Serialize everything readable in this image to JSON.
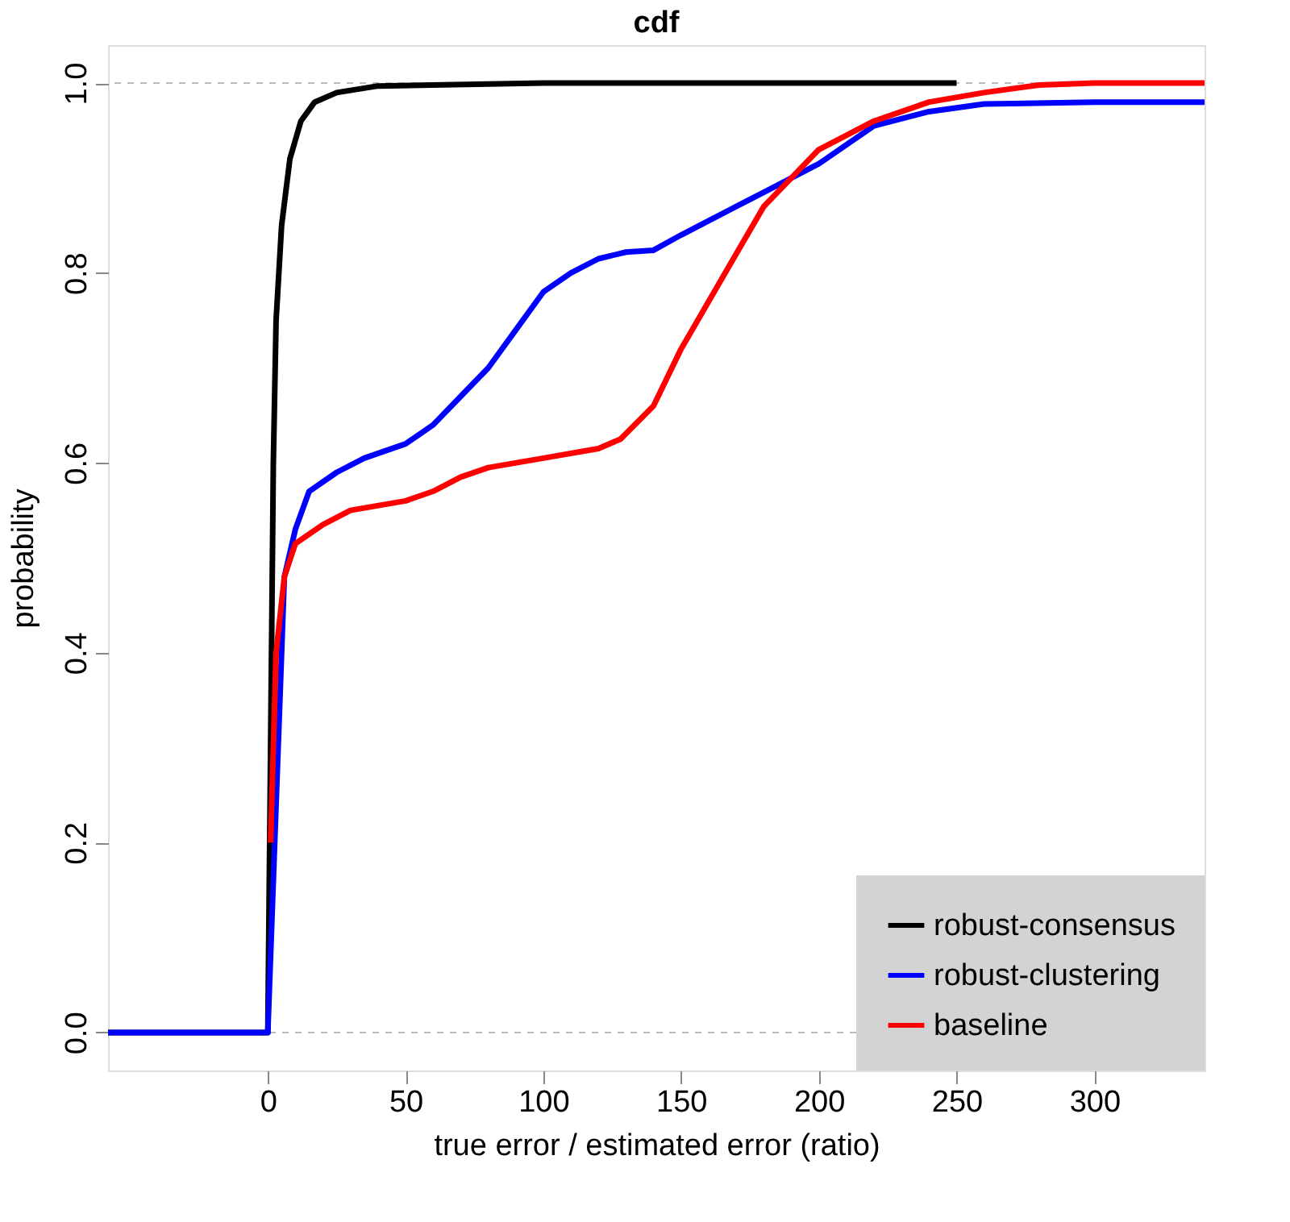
{
  "chart_data": {
    "type": "line",
    "title": "cdf",
    "xlabel": "true error / estimated error (ratio)",
    "ylabel": "probability",
    "xlim": [
      -58,
      340
    ],
    "xticks": [
      0,
      50,
      100,
      150,
      200,
      250,
      300
    ],
    "ylim": [
      -0.04,
      1.04
    ],
    "yticks": [
      {
        "value": 0,
        "label": "0.0"
      },
      {
        "value": 0.2,
        "label": "0.2"
      },
      {
        "value": 0.4,
        "label": "0.4"
      },
      {
        "value": 0.6,
        "label": "0.6"
      },
      {
        "value": 0.8,
        "label": "0.8"
      },
      {
        "value": 1,
        "label": "1.0"
      }
    ],
    "grid": false,
    "legend": "bottom right",
    "line_style": "solid",
    "marker": "none",
    "ref_lines": [
      {
        "axis": "y",
        "value": 0,
        "color": "#bbbbbb",
        "line_style": "dashed"
      },
      {
        "axis": "y",
        "value": 1,
        "color": "#bbbbbb",
        "line_style": "dashed"
      }
    ],
    "series": [
      {
        "name": "robust-consensus",
        "color": "#000000",
        "x": [
          -58,
          0,
          1,
          2,
          3,
          5,
          8,
          12,
          17,
          25,
          40,
          80,
          100,
          250
        ],
        "values": [
          0,
          0,
          0.3,
          0.6,
          0.75,
          0.85,
          0.92,
          0.96,
          0.98,
          0.99,
          0.997,
          0.999,
          1,
          1
        ]
      },
      {
        "name": "robust-clustering",
        "color": "#0000ff",
        "x": [
          -58,
          0,
          6,
          10,
          15,
          25,
          35,
          50,
          60,
          70,
          80,
          90,
          100,
          110,
          120,
          130,
          140,
          150,
          160,
          170,
          180,
          190,
          200,
          210,
          220,
          240,
          260,
          300,
          340
        ],
        "values": [
          0,
          0,
          0.48,
          0.53,
          0.57,
          0.59,
          0.605,
          0.62,
          0.64,
          0.67,
          0.7,
          0.74,
          0.78,
          0.8,
          0.815,
          0.822,
          0.824,
          0.84,
          0.855,
          0.87,
          0.885,
          0.9,
          0.915,
          0.935,
          0.955,
          0.97,
          0.978,
          0.98,
          0.98
        ]
      },
      {
        "name": "baseline",
        "color": "#ff0000",
        "x": [
          1,
          3,
          6,
          10,
          20,
          30,
          50,
          60,
          70,
          80,
          100,
          120,
          128,
          140,
          150,
          160,
          170,
          180,
          190,
          200,
          210,
          220,
          240,
          260,
          280,
          300,
          340
        ],
        "values": [
          0.2,
          0.4,
          0.48,
          0.515,
          0.535,
          0.55,
          0.56,
          0.57,
          0.585,
          0.595,
          0.605,
          0.615,
          0.625,
          0.66,
          0.72,
          0.77,
          0.82,
          0.87,
          0.9,
          0.93,
          0.945,
          0.96,
          0.98,
          0.99,
          0.998,
          1,
          1
        ]
      }
    ]
  }
}
